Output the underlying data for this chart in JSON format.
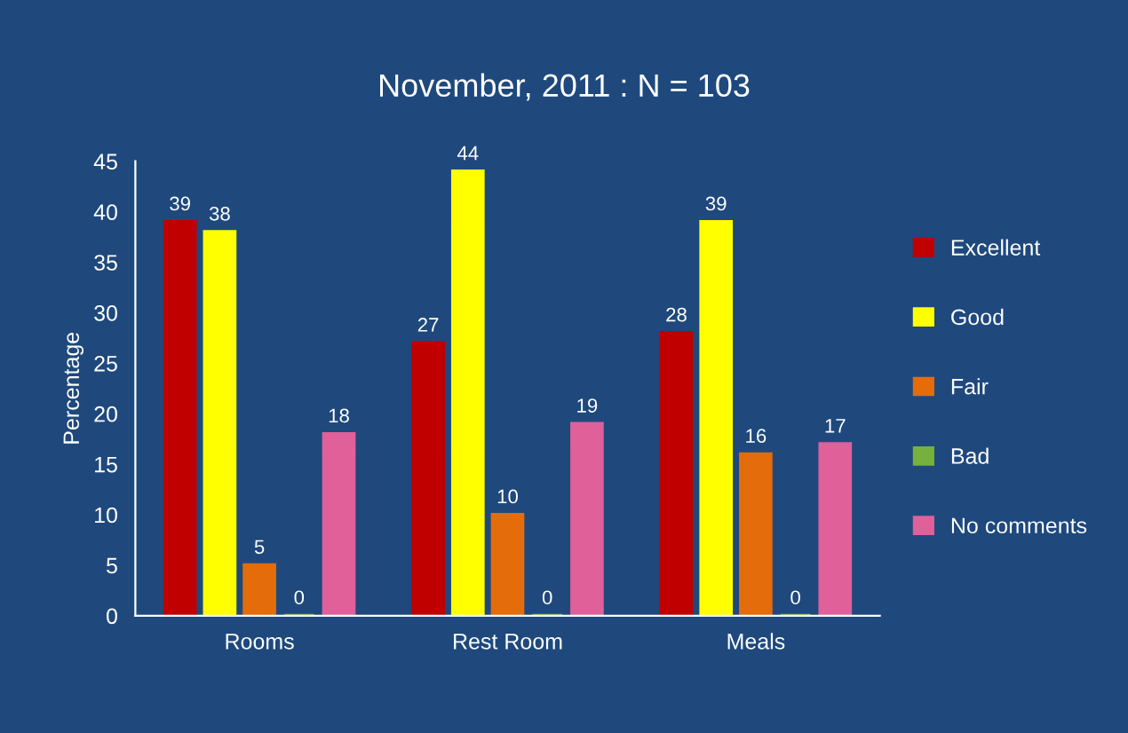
{
  "chart_data": {
    "type": "bar",
    "title": "November, 2011 : N = 103",
    "ylabel": "Percentage",
    "categories": [
      "Rooms",
      "Rest Room",
      "Meals"
    ],
    "series": [
      {
        "name": "Excellent",
        "color": "#c00000",
        "values": [
          39,
          27,
          28
        ]
      },
      {
        "name": "Good",
        "color": "#ffff00",
        "values": [
          38,
          44,
          39
        ]
      },
      {
        "name": "Fair",
        "color": "#e46c0a",
        "values": [
          5,
          10,
          16
        ]
      },
      {
        "name": "Bad",
        "color": "#77b03c",
        "values": [
          0,
          0,
          0
        ]
      },
      {
        "name": "No comments",
        "color": "#e0609a",
        "values": [
          18,
          19,
          17
        ]
      }
    ],
    "ylim": [
      0,
      45
    ],
    "yticks": [
      0,
      5,
      10,
      15,
      20,
      25,
      30,
      35,
      40,
      45
    ],
    "data_labels": true,
    "legend": "right",
    "grid": false
  }
}
